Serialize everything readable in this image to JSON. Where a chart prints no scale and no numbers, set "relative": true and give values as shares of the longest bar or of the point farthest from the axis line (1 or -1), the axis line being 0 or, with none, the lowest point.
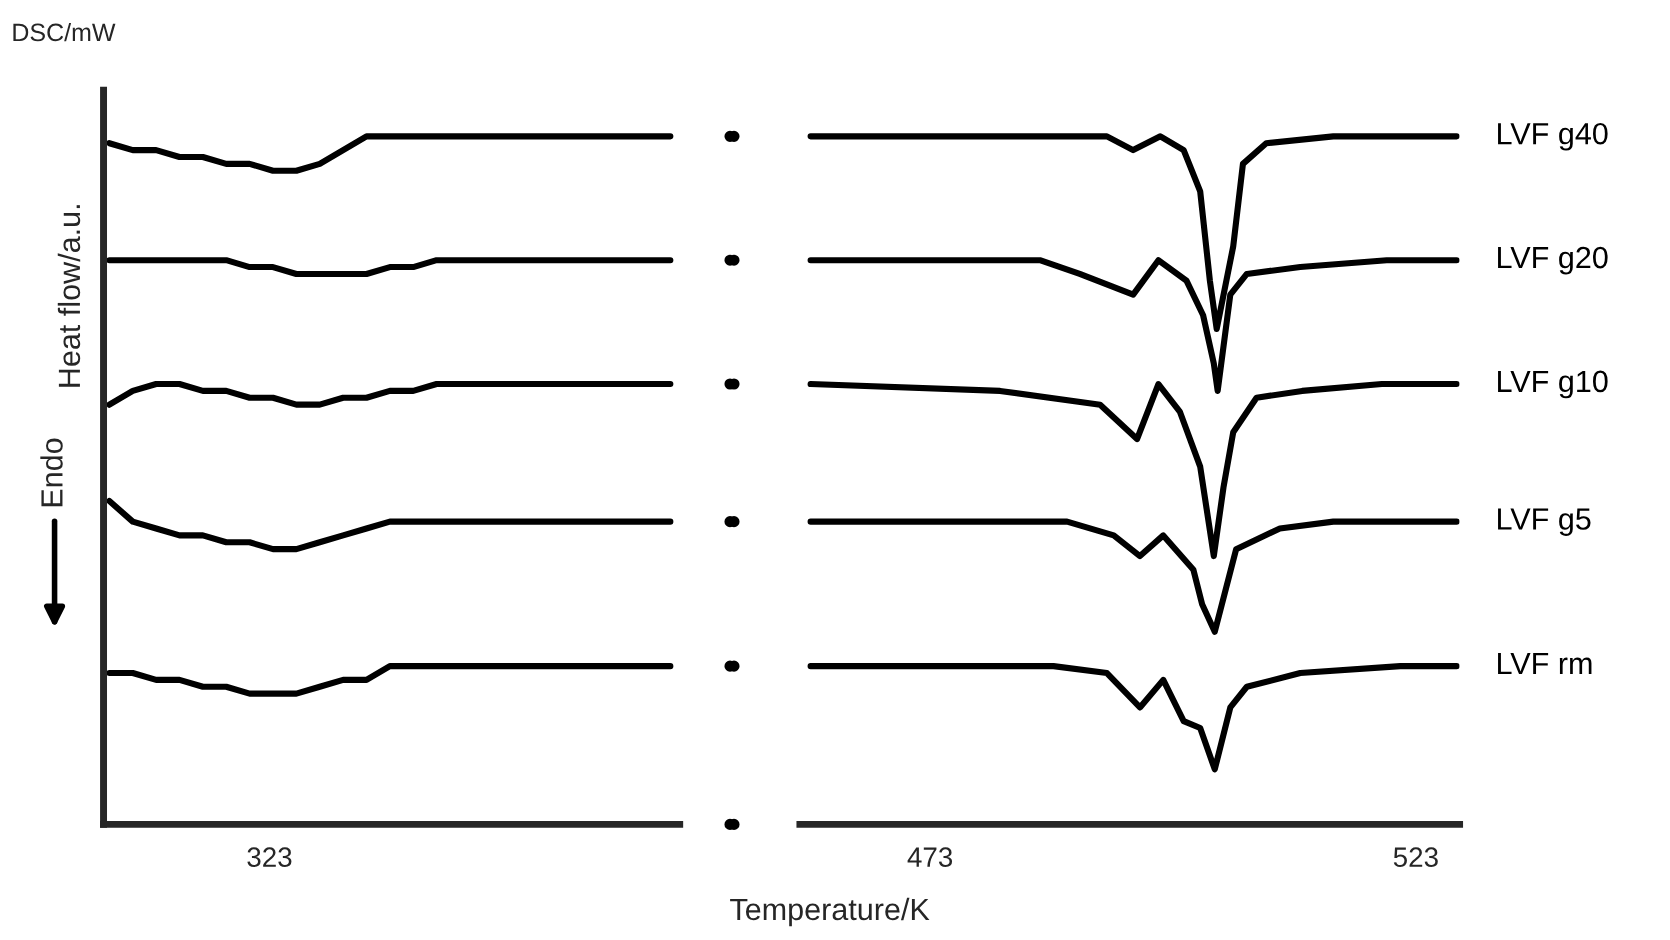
{
  "chart_data": [
    {
      "type": "line",
      "relative": true,
      "ylabel": "Heat flow/a.u.",
      "categories": [
        null,
        null,
        null,
        null,
        null,
        null,
        null,
        null,
        null,
        null,
        null,
        null,
        null,
        null,
        null,
        null,
        null,
        null,
        null,
        null,
        null,
        null,
        null,
        null,
        null
      ],
      "annotations": [
        "DSC/mW",
        "Endo",
        "323"
      ],
      "line_style": "solid",
      "marker": "none",
      "grid": false,
      "legend": false,
      "series": [
        {
          "color": "#000000",
          "values": [
            0.99,
            0.98,
            0.98,
            0.97,
            0.97,
            0.96,
            0.96,
            0.95,
            0.95,
            0.96,
            0.98,
            1.0,
            1.0,
            1.0,
            1.0,
            1.0,
            1.0,
            1.0,
            1.0,
            1.0,
            1.0,
            1.0,
            1.0,
            1.0,
            1.0
          ]
        },
        {
          "color": "#000000",
          "values": [
            0.82,
            0.82,
            0.82,
            0.82,
            0.82,
            0.82,
            0.81,
            0.81,
            0.8,
            0.8,
            0.8,
            0.8,
            0.81,
            0.81,
            0.82,
            0.82,
            0.82,
            0.82,
            0.82,
            0.82,
            0.82,
            0.82,
            0.82,
            0.82,
            0.82
          ]
        },
        {
          "color": "#000000",
          "values": [
            0.61,
            0.63,
            0.64,
            0.64,
            0.63,
            0.63,
            0.62,
            0.62,
            0.61,
            0.61,
            0.62,
            0.62,
            0.63,
            0.63,
            0.64,
            0.64,
            0.64,
            0.64,
            0.64,
            0.64,
            0.64,
            0.64,
            0.64,
            0.64,
            0.64
          ]
        },
        {
          "color": "#000000",
          "values": [
            0.47,
            0.44,
            0.43,
            0.42,
            0.42,
            0.41,
            0.41,
            0.4,
            0.4,
            0.41,
            0.42,
            0.43,
            0.44,
            0.44,
            0.44,
            0.44,
            0.44,
            0.44,
            0.44,
            0.44,
            0.44,
            0.44,
            0.44,
            0.44,
            0.44
          ]
        },
        {
          "color": "#000000",
          "values": [
            0.22,
            0.22,
            0.21,
            0.21,
            0.2,
            0.2,
            0.19,
            0.19,
            0.19,
            0.2,
            0.21,
            0.21,
            0.23,
            0.23,
            0.23,
            0.23,
            0.23,
            0.23,
            0.23,
            0.23,
            0.23,
            0.23,
            0.23,
            0.23,
            0.23
          ]
        }
      ]
    },
    {
      "type": "line",
      "relative": true,
      "xlabel": "Temperature/K",
      "xlim": [
        459.6,
        527.5
      ],
      "xticks": [
        473,
        523
      ],
      "line_style": "solid",
      "marker": "none",
      "grid": false,
      "legend": false,
      "series": [
        {
          "name": "LVF g40",
          "color": "#000000",
          "x": [
            460.7,
            491.2,
            493.9,
            496.7,
            499.1,
            500.8,
            501.8,
            502.5,
            504.2,
            505.2,
            507.6,
            514.5,
            527.2
          ],
          "values": [
            1.0,
            1.0,
            0.98,
            1.0,
            0.98,
            0.92,
            0.79,
            0.72,
            0.84,
            0.96,
            0.99,
            1.0,
            1.0
          ]
        },
        {
          "name": "LVF g20",
          "color": "#000000",
          "x": [
            460.7,
            484.3,
            488.4,
            493.9,
            496.5,
            499.4,
            501.1,
            502.2,
            502.6,
            503.9,
            505.6,
            511.1,
            520.0,
            527.2
          ],
          "values": [
            0.82,
            0.82,
            0.8,
            0.77,
            0.82,
            0.79,
            0.74,
            0.67,
            0.63,
            0.77,
            0.8,
            0.81,
            0.82,
            0.82
          ]
        },
        {
          "name": "LVF g10",
          "color": "#000000",
          "x": [
            460.7,
            480.2,
            490.5,
            494.3,
            496.5,
            498.7,
            500.8,
            502.2,
            503.2,
            504.2,
            506.6,
            511.3,
            519.5,
            527.2
          ],
          "values": [
            0.64,
            0.63,
            0.61,
            0.56,
            0.64,
            0.6,
            0.52,
            0.39,
            0.49,
            0.57,
            0.62,
            0.63,
            0.64,
            0.64
          ]
        },
        {
          "name": "LVF g5",
          "color": "#000000",
          "x": [
            460.7,
            487.1,
            491.9,
            494.6,
            497.0,
            500.1,
            501.0,
            502.3,
            504.5,
            509.0,
            514.5,
            527.2
          ],
          "values": [
            0.44,
            0.44,
            0.42,
            0.39,
            0.42,
            0.37,
            0.32,
            0.28,
            0.4,
            0.43,
            0.44,
            0.44
          ]
        },
        {
          "name": "LVF rm",
          "color": "#000000",
          "x": [
            460.7,
            485.7,
            491.2,
            494.6,
            497.0,
            499.1,
            500.8,
            502.3,
            503.9,
            505.6,
            511.1,
            521.4,
            527.2
          ],
          "values": [
            0.23,
            0.23,
            0.22,
            0.17,
            0.21,
            0.15,
            0.14,
            0.08,
            0.17,
            0.2,
            0.22,
            0.23,
            0.23
          ]
        }
      ]
    }
  ]
}
